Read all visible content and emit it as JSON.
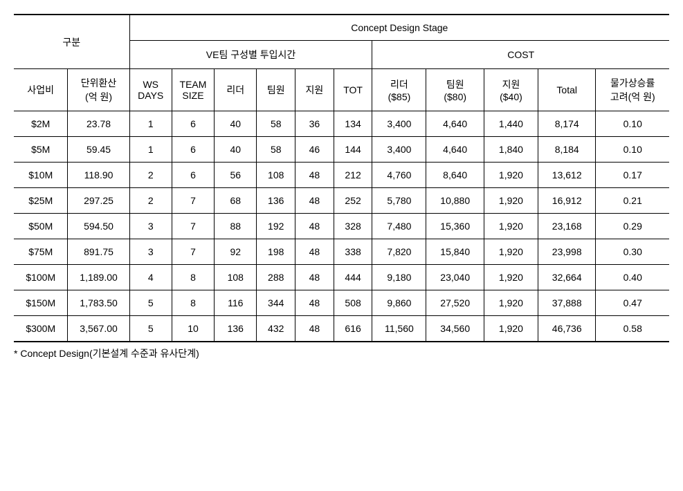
{
  "headers": {
    "group_left": "구분",
    "group_right": "Concept Design Stage",
    "sub_ve": "VE팀 구성별 투입시간",
    "sub_cost": "COST",
    "col1": "사업비",
    "col2": "단위환산\n(억 원)",
    "col3": "WS\nDAYS",
    "col4": "TEAM\nSIZE",
    "col5": "리더",
    "col6": "팀원",
    "col7": "지원",
    "col8": "TOT",
    "col9": "리더\n($85)",
    "col10": "팀원\n($80)",
    "col11": "지원\n($40)",
    "col12": "Total",
    "col13": "물가상승률\n고려(억 원)"
  },
  "rows": [
    {
      "c1": "$2M",
      "c2": "23.78",
      "c3": "1",
      "c4": "6",
      "c5": "40",
      "c6": "58",
      "c7": "36",
      "c8": "134",
      "c9": "3,400",
      "c10": "4,640",
      "c11": "1,440",
      "c12": "8,174",
      "c13": "0.10"
    },
    {
      "c1": "$5M",
      "c2": "59.45",
      "c3": "1",
      "c4": "6",
      "c5": "40",
      "c6": "58",
      "c7": "46",
      "c8": "144",
      "c9": "3,400",
      "c10": "4,640",
      "c11": "1,840",
      "c12": "8,184",
      "c13": "0.10"
    },
    {
      "c1": "$10M",
      "c2": "118.90",
      "c3": "2",
      "c4": "6",
      "c5": "56",
      "c6": "108",
      "c7": "48",
      "c8": "212",
      "c9": "4,760",
      "c10": "8,640",
      "c11": "1,920",
      "c12": "13,612",
      "c13": "0.17"
    },
    {
      "c1": "$25M",
      "c2": "297.25",
      "c3": "2",
      "c4": "7",
      "c5": "68",
      "c6": "136",
      "c7": "48",
      "c8": "252",
      "c9": "5,780",
      "c10": "10,880",
      "c11": "1,920",
      "c12": "16,912",
      "c13": "0.21"
    },
    {
      "c1": "$50M",
      "c2": "594.50",
      "c3": "3",
      "c4": "7",
      "c5": "88",
      "c6": "192",
      "c7": "48",
      "c8": "328",
      "c9": "7,480",
      "c10": "15,360",
      "c11": "1,920",
      "c12": "23,168",
      "c13": "0.29"
    },
    {
      "c1": "$75M",
      "c2": "891.75",
      "c3": "3",
      "c4": "7",
      "c5": "92",
      "c6": "198",
      "c7": "48",
      "c8": "338",
      "c9": "7,820",
      "c10": "15,840",
      "c11": "1,920",
      "c12": "23,998",
      "c13": "0.30"
    },
    {
      "c1": "$100M",
      "c2": "1,189.00",
      "c3": "4",
      "c4": "8",
      "c5": "108",
      "c6": "288",
      "c7": "48",
      "c8": "444",
      "c9": "9,180",
      "c10": "23,040",
      "c11": "1,920",
      "c12": "32,664",
      "c13": "0.40"
    },
    {
      "c1": "$150M",
      "c2": "1,783.50",
      "c3": "5",
      "c4": "8",
      "c5": "116",
      "c6": "344",
      "c7": "48",
      "c8": "508",
      "c9": "9,860",
      "c10": "27,520",
      "c11": "1,920",
      "c12": "37,888",
      "c13": "0.47"
    },
    {
      "c1": "$300M",
      "c2": "3,567.00",
      "c3": "5",
      "c4": "10",
      "c5": "136",
      "c6": "432",
      "c7": "48",
      "c8": "616",
      "c9": "11,560",
      "c10": "34,560",
      "c11": "1,920",
      "c12": "46,736",
      "c13": "0.58"
    }
  ],
  "footnote": "* Concept Design(기본설계 수준과 유사단계)"
}
